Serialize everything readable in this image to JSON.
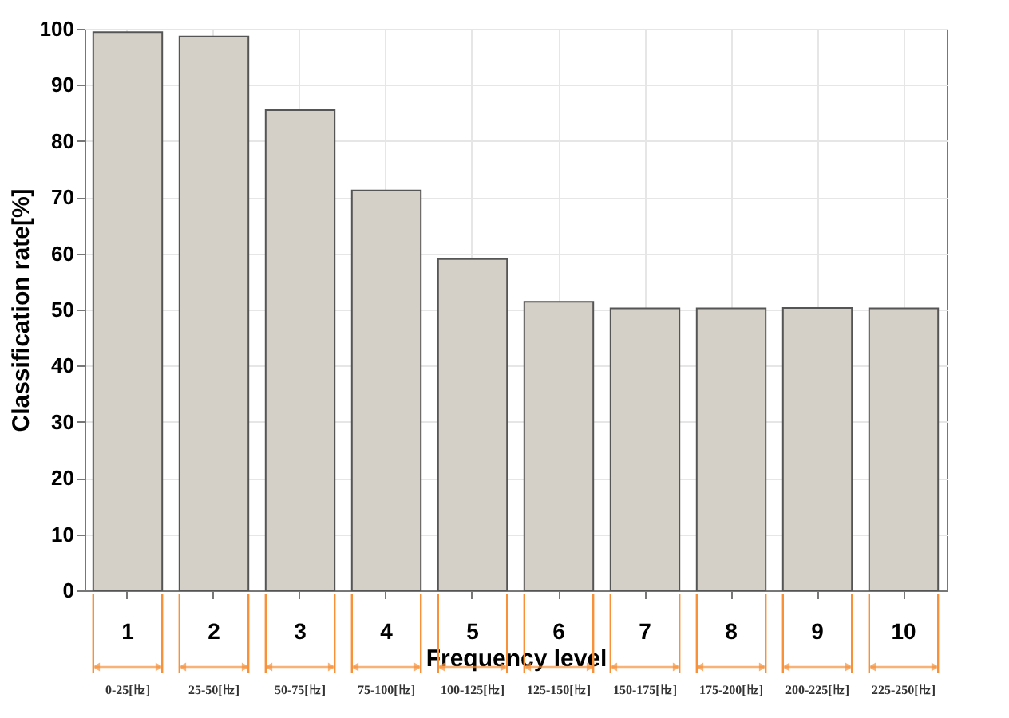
{
  "chart_data": {
    "type": "bar",
    "xlabel": "Frequency level",
    "ylabel": "Classification rate[%]",
    "categories": [
      "1",
      "2",
      "3",
      "4",
      "5",
      "6",
      "7",
      "8",
      "9",
      "10"
    ],
    "values": [
      99.4,
      98.6,
      85.5,
      71.2,
      59.0,
      51.4,
      50.2,
      50.2,
      50.3,
      50.2
    ],
    "color": "#d4d0c8",
    "ylim": [
      0,
      100
    ],
    "yticks": [
      0,
      10,
      20,
      30,
      40,
      50,
      60,
      70,
      80,
      90,
      100
    ],
    "grid": true,
    "annotations": [
      "0-25[㎐]",
      "25-50[㎐]",
      "50-75[㎐]",
      "75-100[㎐]",
      "100-125[㎐]",
      "125-150[㎐]",
      "150-175[㎐]",
      "175-200[㎐]",
      "200-225[㎐]",
      "225-250[㎐]"
    ]
  }
}
